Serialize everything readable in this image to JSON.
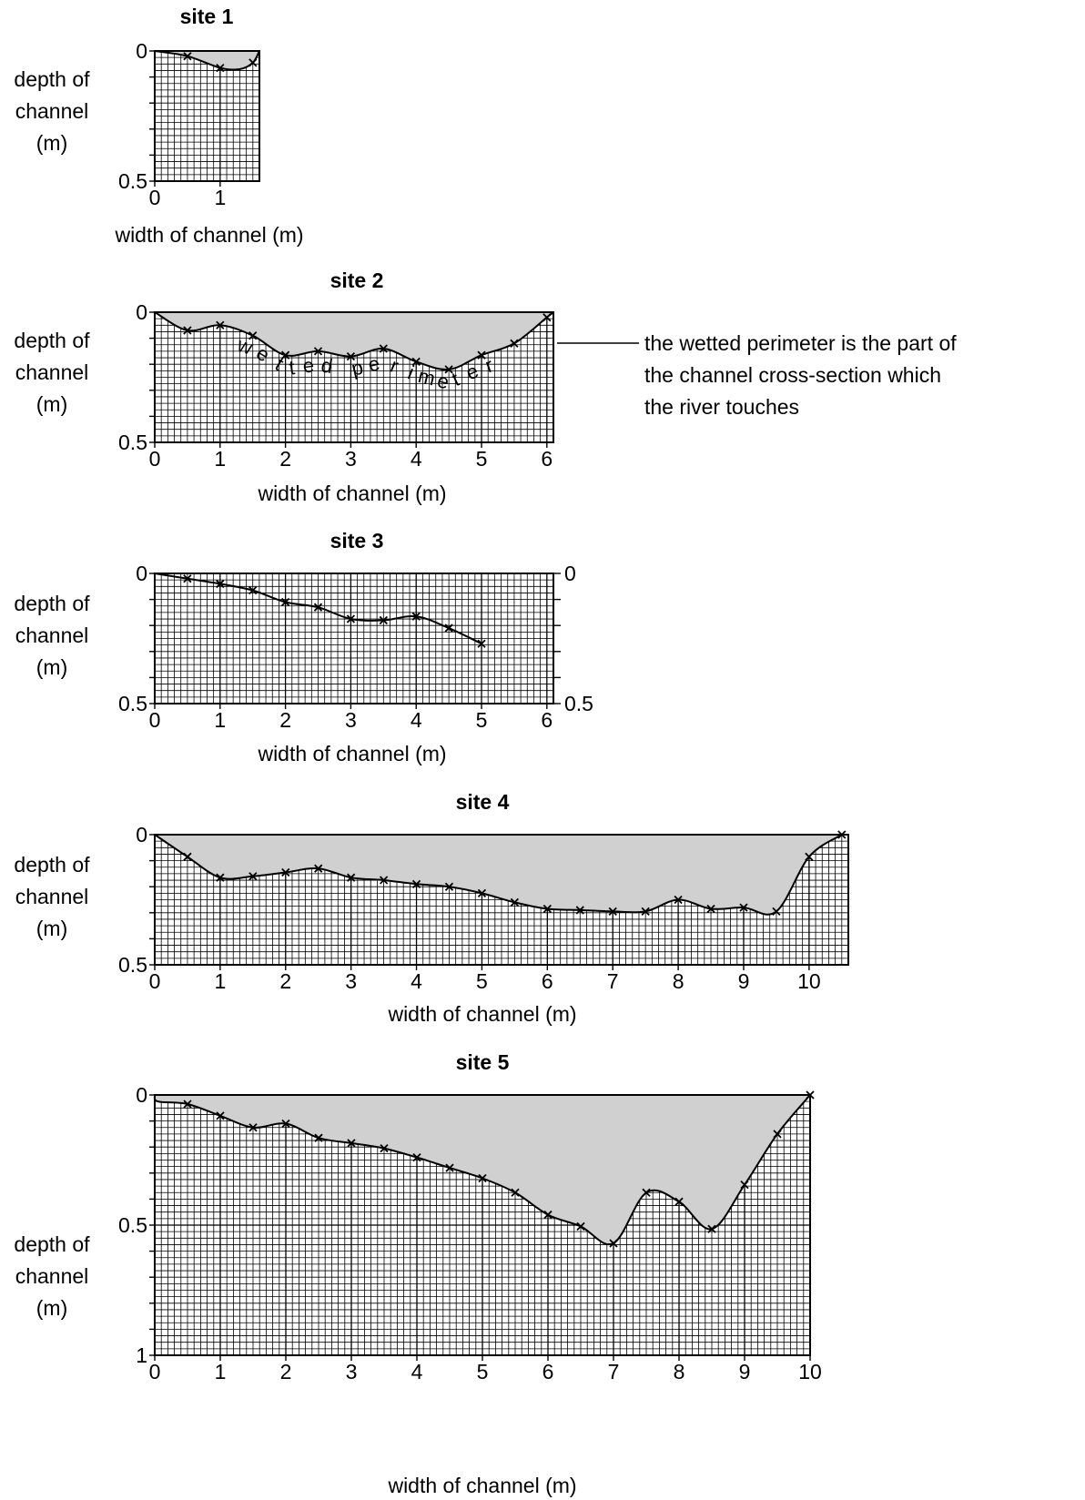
{
  "chart_data": [
    {
      "type": "area",
      "title": "site 1",
      "xlabel": "width of channel (m)",
      "ylabel": [
        "depth of",
        "channel",
        "(m)"
      ],
      "xlim": [
        0,
        1.6
      ],
      "ylim": [
        0,
        0.5
      ],
      "xticks": [
        "0",
        "1"
      ],
      "yticks": [
        "0",
        "0.5"
      ],
      "x": [
        0.5,
        1.0,
        1.5
      ],
      "y": [
        0.02,
        0.065,
        0.045
      ],
      "profile": [
        [
          0,
          0
        ],
        [
          0.5,
          0.02
        ],
        [
          1.0,
          0.065
        ],
        [
          1.3,
          0.07
        ],
        [
          1.5,
          0.045
        ],
        [
          1.6,
          0
        ]
      ]
    },
    {
      "type": "area",
      "title": "site 2",
      "xlabel": "width of channel (m)",
      "ylabel": [
        "depth of",
        "channel",
        "(m)"
      ],
      "xlim": [
        0,
        6.1
      ],
      "ylim": [
        0,
        0.5
      ],
      "xticks": [
        "0",
        "1",
        "2",
        "3",
        "4",
        "5",
        "6"
      ],
      "yticks": [
        "0",
        "0.5"
      ],
      "x": [
        0.5,
        1.0,
        1.5,
        2.0,
        2.5,
        3.0,
        3.5,
        4.0,
        4.5,
        5.0,
        5.5,
        6.0
      ],
      "y": [
        0.07,
        0.05,
        0.09,
        0.165,
        0.15,
        0.17,
        0.14,
        0.19,
        0.22,
        0.165,
        0.12,
        0.02
      ],
      "profile": [
        [
          0,
          0
        ],
        [
          0.5,
          0.07
        ],
        [
          1.0,
          0.05
        ],
        [
          1.5,
          0.09
        ],
        [
          2.0,
          0.165
        ],
        [
          2.5,
          0.15
        ],
        [
          3.0,
          0.17
        ],
        [
          3.5,
          0.14
        ],
        [
          4.0,
          0.19
        ],
        [
          4.5,
          0.22
        ],
        [
          5.0,
          0.165
        ],
        [
          5.5,
          0.12
        ],
        [
          6.0,
          0.02
        ],
        [
          6.1,
          0
        ]
      ],
      "annotation_inside": "wetted perimeter",
      "annotation": [
        "the wetted perimeter is the part of",
        "the channel cross-section which",
        "the river touches"
      ]
    },
    {
      "type": "line",
      "title": "site 3",
      "xlabel": "width of channel (m)",
      "ylabel": [
        "depth of",
        "channel",
        "(m)"
      ],
      "xlim": [
        0,
        6.1
      ],
      "ylim": [
        0,
        0.5
      ],
      "xticks": [
        "0",
        "1",
        "2",
        "3",
        "4",
        "5",
        "6"
      ],
      "yticks": [
        "0",
        "0.5"
      ],
      "right_yticks": [
        "0",
        "0.5"
      ],
      "x": [
        0.5,
        1.0,
        1.5,
        2.0,
        2.5,
        3.0,
        3.5,
        4.0,
        4.5,
        5.0
      ],
      "y": [
        0.02,
        0.04,
        0.065,
        0.11,
        0.13,
        0.175,
        0.18,
        0.165,
        0.21,
        0.27
      ],
      "profile": [
        [
          0,
          0
        ],
        [
          0.5,
          0.02
        ],
        [
          1.0,
          0.04
        ],
        [
          1.5,
          0.065
        ],
        [
          2.0,
          0.11
        ],
        [
          2.5,
          0.13
        ],
        [
          3.0,
          0.175
        ],
        [
          3.5,
          0.18
        ],
        [
          4.0,
          0.165
        ],
        [
          4.5,
          0.21
        ],
        [
          5.0,
          0.27
        ]
      ]
    },
    {
      "type": "area",
      "title": "site 4",
      "xlabel": "width of channel (m)",
      "ylabel": [
        "depth of",
        "channel",
        "(m)"
      ],
      "xlim": [
        0,
        10.6
      ],
      "ylim": [
        0,
        0.5
      ],
      "xticks": [
        "0",
        "1",
        "2",
        "3",
        "4",
        "5",
        "6",
        "7",
        "8",
        "9",
        "10"
      ],
      "yticks": [
        "0",
        "0.5"
      ],
      "x": [
        0.5,
        1.0,
        1.5,
        2.0,
        2.5,
        3.0,
        3.5,
        4.0,
        4.5,
        5.0,
        5.5,
        6.0,
        6.5,
        7.0,
        7.5,
        8.0,
        8.5,
        9.0,
        9.5,
        10.0,
        10.5
      ],
      "y": [
        0.085,
        0.165,
        0.16,
        0.145,
        0.13,
        0.165,
        0.175,
        0.19,
        0.2,
        0.225,
        0.26,
        0.285,
        0.29,
        0.295,
        0.295,
        0.25,
        0.285,
        0.28,
        0.295,
        0.085,
        0.0
      ],
      "profile": [
        [
          0,
          0
        ],
        [
          0.5,
          0.085
        ],
        [
          1.0,
          0.165
        ],
        [
          1.5,
          0.16
        ],
        [
          2.0,
          0.145
        ],
        [
          2.5,
          0.13
        ],
        [
          3.0,
          0.165
        ],
        [
          3.5,
          0.175
        ],
        [
          4.0,
          0.19
        ],
        [
          4.5,
          0.2
        ],
        [
          5.0,
          0.225
        ],
        [
          5.5,
          0.26
        ],
        [
          6.0,
          0.285
        ],
        [
          6.5,
          0.29
        ],
        [
          7.0,
          0.295
        ],
        [
          7.5,
          0.295
        ],
        [
          8.0,
          0.25
        ],
        [
          8.5,
          0.285
        ],
        [
          9.0,
          0.28
        ],
        [
          9.5,
          0.295
        ],
        [
          10.0,
          0.085
        ],
        [
          10.5,
          0.0
        ]
      ]
    },
    {
      "type": "area",
      "title": "site 5",
      "xlabel": "width of channel (m)",
      "ylabel": [
        "depth of",
        "channel",
        "(m)"
      ],
      "xlim": [
        0,
        10.0
      ],
      "ylim": [
        0,
        1.0
      ],
      "xticks": [
        "0",
        "1",
        "2",
        "3",
        "4",
        "5",
        "6",
        "7",
        "8",
        "9",
        "10"
      ],
      "yticks": [
        "0",
        "0.5",
        "1"
      ],
      "x": [
        0.5,
        1.0,
        1.5,
        2.0,
        2.5,
        3.0,
        3.5,
        4.0,
        4.5,
        5.0,
        5.5,
        6.0,
        6.5,
        7.0,
        7.5,
        8.0,
        8.5,
        9.0,
        9.5,
        10.0
      ],
      "y": [
        0.035,
        0.08,
        0.125,
        0.11,
        0.165,
        0.185,
        0.205,
        0.24,
        0.28,
        0.32,
        0.375,
        0.46,
        0.505,
        0.57,
        0.375,
        0.41,
        0.515,
        0.345,
        0.15,
        0.0
      ],
      "profile": [
        [
          0,
          0
        ],
        [
          0.05,
          0.025
        ],
        [
          0.5,
          0.035
        ],
        [
          1.0,
          0.08
        ],
        [
          1.5,
          0.125
        ],
        [
          2.0,
          0.11
        ],
        [
          2.5,
          0.165
        ],
        [
          3.0,
          0.185
        ],
        [
          3.5,
          0.205
        ],
        [
          4.0,
          0.24
        ],
        [
          4.5,
          0.28
        ],
        [
          5.0,
          0.32
        ],
        [
          5.5,
          0.375
        ],
        [
          6.0,
          0.46
        ],
        [
          6.5,
          0.505
        ],
        [
          7.0,
          0.57
        ],
        [
          7.5,
          0.375
        ],
        [
          8.0,
          0.41
        ],
        [
          8.5,
          0.515
        ],
        [
          9.0,
          0.345
        ],
        [
          9.5,
          0.15
        ],
        [
          10.0,
          0.0
        ]
      ]
    }
  ]
}
